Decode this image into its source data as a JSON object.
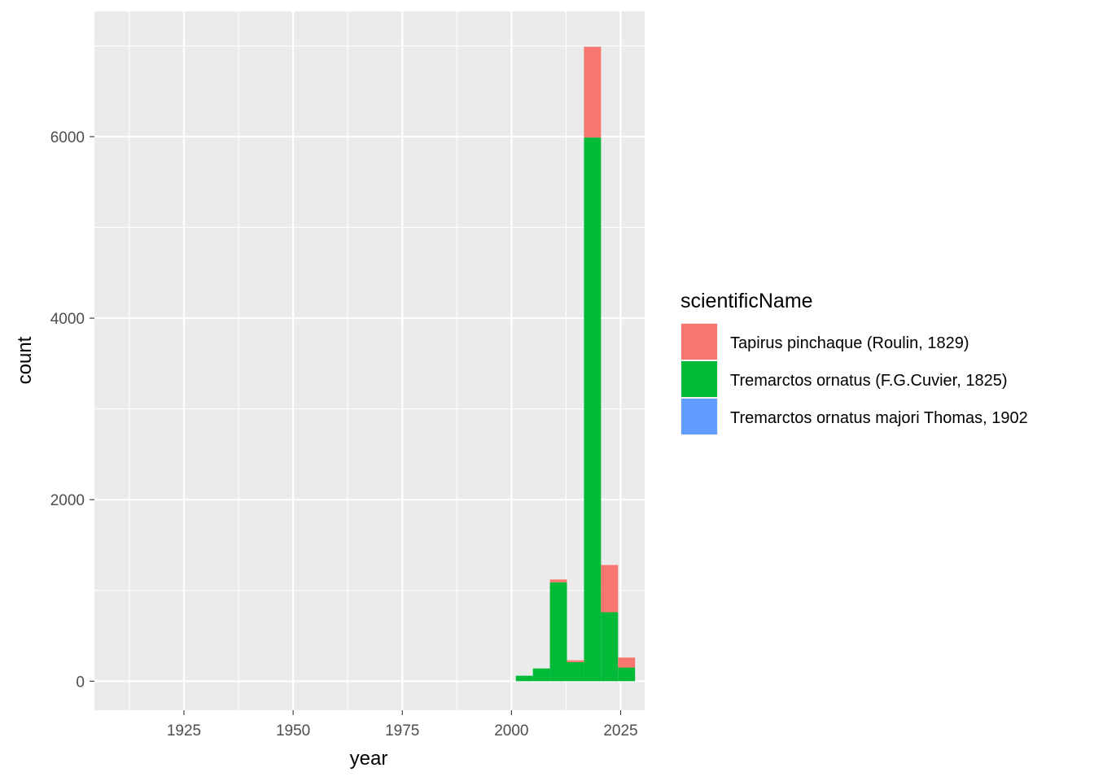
{
  "chart_data": {
    "type": "bar",
    "stacked": true,
    "title": "",
    "xlabel": "year",
    "ylabel": "count",
    "xlim": [
      1904.5,
      2030.5
    ],
    "ylim": [
      -320,
      7380
    ],
    "x_ticks": [
      "1925",
      "1950",
      "1975",
      "2000",
      "2025"
    ],
    "x_tick_values": [
      1925,
      1950,
      1975,
      2000,
      2025
    ],
    "x_minor_values": [
      1912.5,
      1937.5,
      1962.5,
      1987.5,
      2012.5
    ],
    "y_ticks": [
      "0",
      "2000",
      "4000",
      "6000"
    ],
    "y_tick_values": [
      0,
      2000,
      4000,
      6000
    ],
    "y_minor_values": [
      1000,
      3000,
      5000,
      7000
    ],
    "grid": true,
    "legend_position": "right",
    "legend_title": "scientificName",
    "bin_width": 3.9,
    "bins": [
      2001.0,
      2004.9,
      2008.8,
      2012.7,
      2016.6,
      2020.5,
      2024.4
    ],
    "series": [
      {
        "name": "Tapirus pinchaque (Roulin, 1829)",
        "color": "#F8766D",
        "values": [
          0,
          0,
          30,
          20,
          1000,
          520,
          110
        ]
      },
      {
        "name": "Tremarctos ornatus (F.G.Cuvier, 1825)",
        "color": "#00BA38",
        "values": [
          60,
          140,
          1090,
          210,
          5990,
          760,
          150
        ]
      },
      {
        "name": "Tremarctos ornatus majori Thomas, 1902",
        "color": "#619CFF",
        "values": [
          0,
          0,
          0,
          0,
          0,
          0,
          0
        ]
      }
    ]
  }
}
